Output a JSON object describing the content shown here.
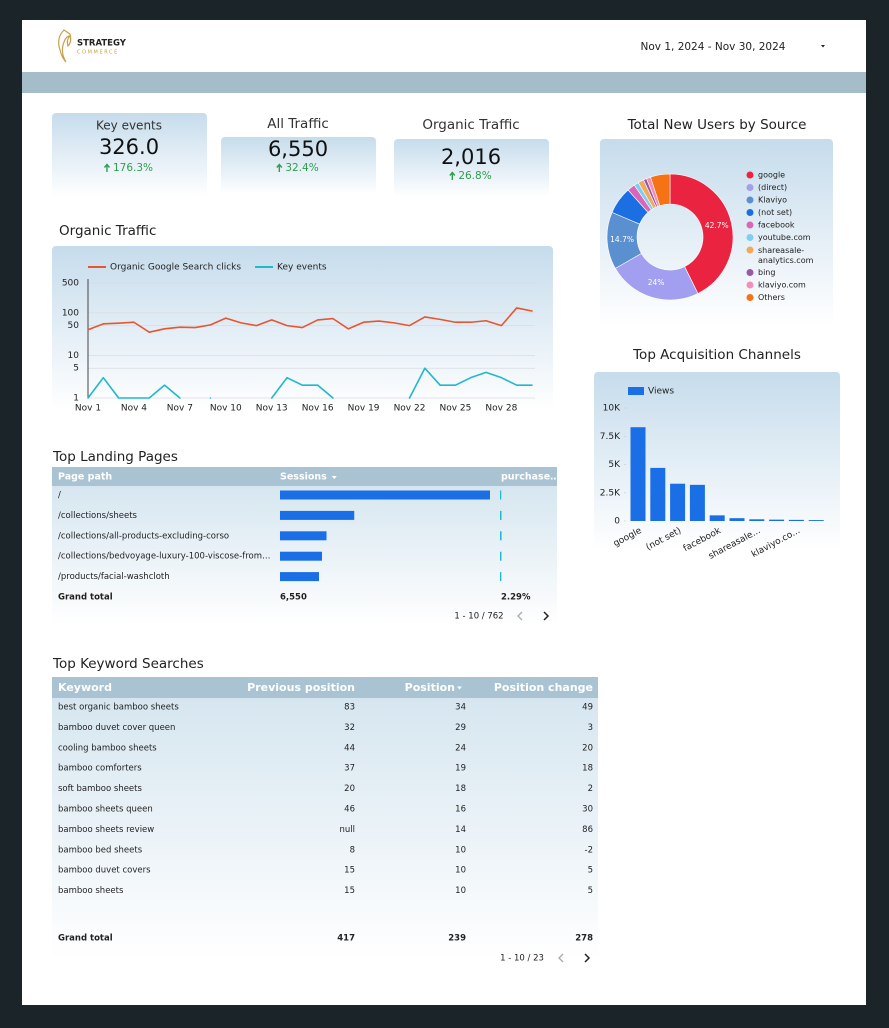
{
  "header": {
    "logo_line1": "STRATEGY",
    "logo_line2": "COMMERCE",
    "date_range": "Nov 1, 2024 - Nov 30, 2024"
  },
  "kpis": [
    {
      "label": "Key events",
      "value": "326.0",
      "change": "176.3%"
    },
    {
      "label": "All Traffic",
      "value": "6,550",
      "change": "32.4%"
    },
    {
      "label": "Organic Traffic",
      "value": "2,016",
      "change": "26.8%"
    }
  ],
  "chart_data": [
    {
      "type": "pie",
      "donut": true,
      "title": "Total New Users by Source",
      "legend": "right",
      "categories": [
        "google",
        "(direct)",
        "Klaviyo",
        "(not set)",
        "facebook",
        "youtube.com",
        "shareasale-analytics.com",
        "bing",
        "klaviyo.com",
        "Others"
      ],
      "values": [
        42.7,
        24,
        14.7,
        7,
        2,
        1.2,
        1.5,
        0.8,
        1.1,
        5
      ],
      "value_labels": [
        "42.7%",
        "24%",
        "14.7%",
        null,
        null,
        null,
        null,
        null,
        null,
        null
      ],
      "colors": [
        "#ea2340",
        "#a39ff0",
        "#5b90d0",
        "#1c6fe3",
        "#d967b9",
        "#7fcdf1",
        "#f2a85f",
        "#9a58a5",
        "#f290b6",
        "#f57215"
      ]
    },
    {
      "type": "line",
      "title": "Organic Traffic",
      "log_scale": true,
      "grid": true,
      "legend": "top",
      "categories": [
        "Nov 1",
        null,
        null,
        "Nov 4",
        null,
        null,
        "Nov 7",
        null,
        null,
        "Nov 10",
        null,
        null,
        "Nov 13",
        null,
        null,
        "Nov 16",
        null,
        null,
        "Nov 19",
        null,
        null,
        "Nov 22",
        null,
        null,
        "Nov 25",
        null,
        null,
        "Nov 28",
        null,
        null
      ],
      "series": [
        {
          "name": "Organic Google Search clicks",
          "color": "#e8552f",
          "values": [
            40,
            55,
            57,
            60,
            35,
            42,
            46,
            45,
            52,
            75,
            58,
            50,
            68,
            50,
            45,
            68,
            73,
            42,
            60,
            64,
            58,
            50,
            80,
            70,
            60,
            60,
            65,
            50,
            130,
            110
          ]
        },
        {
          "name": "Key events",
          "color": "#1fb8cd",
          "values": [
            1,
            3,
            1,
            1,
            1,
            2,
            1,
            null,
            1,
            null,
            null,
            null,
            1,
            3,
            2,
            2,
            1,
            null,
            null,
            null,
            null,
            1,
            5,
            2,
            2,
            3,
            4,
            3,
            2,
            2
          ]
        }
      ],
      "ylim": [
        1,
        500
      ],
      "yticks": [
        1,
        5,
        10,
        50,
        100,
        500
      ]
    },
    {
      "type": "bar",
      "title": "Top Acquisition Channels",
      "legend": "top",
      "categories": [
        "google",
        null,
        "(not set)",
        null,
        "facebook",
        null,
        "shareasale...",
        null,
        "klaviyo.co...",
        null
      ],
      "series": [
        {
          "name": "Views",
          "color": "#1a6fe6",
          "values": [
            8300,
            4700,
            3300,
            3200,
            500,
            250,
            150,
            120,
            100,
            80
          ]
        }
      ],
      "ylim": [
        0,
        10000
      ],
      "yticks": [
        0,
        {
          "value": 2500,
          "label": "2.5K"
        },
        {
          "value": 5000,
          "label": "5K"
        },
        {
          "value": 7500,
          "label": "7.5K"
        },
        {
          "value": 10000,
          "label": "10K"
        }
      ]
    }
  ],
  "landing_pages": {
    "title": "Top Landing Pages",
    "columns": [
      "Page path",
      "Sessions",
      "purchase…"
    ],
    "rows": [
      {
        "path": "/",
        "sessions": 2800,
        "purchase_rate": 2.1
      },
      {
        "path": "/collections/sheets",
        "sessions": 990,
        "purchase_rate": 2.5
      },
      {
        "path": "/collections/all-products-excluding-corso",
        "sessions": 620,
        "purchase_rate": 2.6
      },
      {
        "path": "/collections/bedvoyage-luxury-100-viscose-from…",
        "sessions": 560,
        "purchase_rate": 2.4
      },
      {
        "path": "/products/facial-washcloth",
        "sessions": 520,
        "purchase_rate": 2.2
      }
    ],
    "total": [
      "Grand total",
      "6,550",
      "2.29%"
    ],
    "pagination": "1 - 10 / 762"
  },
  "keywords": {
    "title": "Top Keyword Searches",
    "columns": [
      "Keyword",
      "Previous position",
      "Position",
      "Position change"
    ],
    "rows": [
      [
        "best organic bamboo sheets",
        83,
        34,
        49
      ],
      [
        "bamboo duvet cover queen",
        32,
        29,
        3
      ],
      [
        "cooling bamboo sheets",
        44,
        24,
        20
      ],
      [
        "bamboo comforters",
        37,
        19,
        18
      ],
      [
        "soft bamboo sheets",
        20,
        18,
        2
      ],
      [
        "bamboo sheets queen",
        46,
        16,
        30
      ],
      [
        "bamboo sheets review",
        "null",
        14,
        86
      ],
      [
        "bamboo bed sheets",
        8,
        10,
        -2
      ],
      [
        "bamboo duvet covers",
        15,
        10,
        5
      ],
      [
        "bamboo sheets",
        15,
        10,
        5
      ]
    ],
    "total": [
      "Grand total",
      417,
      239,
      278
    ],
    "pagination": "1 - 10 / 23"
  }
}
